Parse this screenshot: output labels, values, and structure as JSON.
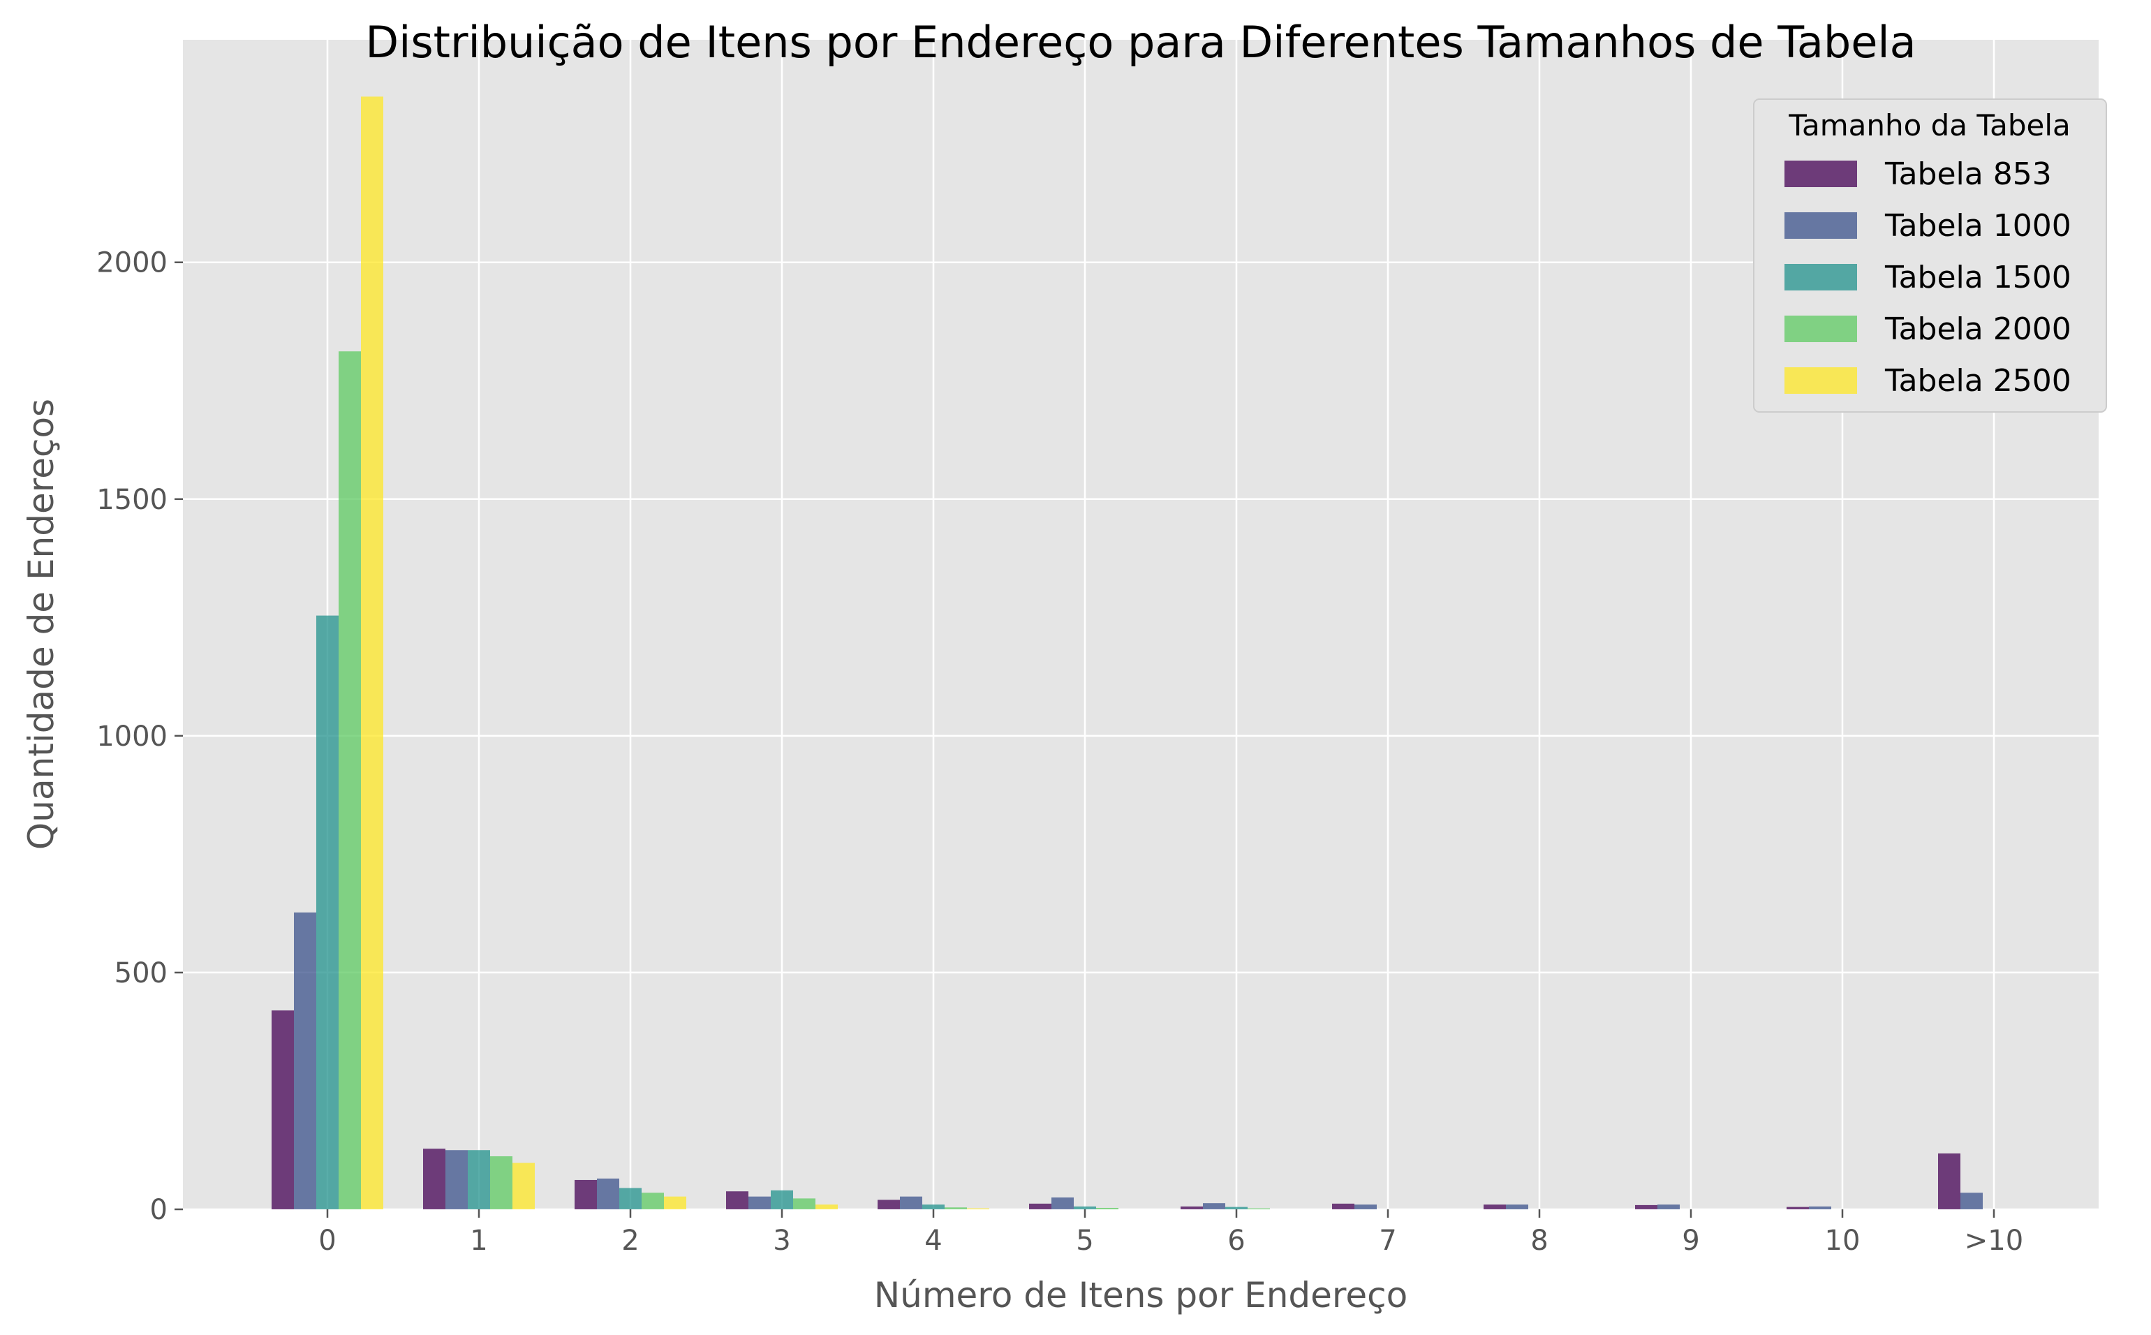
{
  "chart_data": {
    "type": "bar",
    "title": "Distribuição de Itens por Endereço para Diferentes Tamanhos de Tabela",
    "xlabel": "Número de Itens por Endereço",
    "ylabel": "Quantidade de Endereços",
    "categories": [
      "0",
      "1",
      "2",
      "3",
      "4",
      "5",
      "6",
      "7",
      "8",
      "9",
      "10",
      ">10"
    ],
    "ylim": [
      0,
      2470
    ],
    "yticks": [
      0,
      500,
      1000,
      1500,
      2000
    ],
    "grid": true,
    "legend_title": "Tamanho da Tabela",
    "legend_position": "top-right",
    "series": [
      {
        "name": "Tabela 853",
        "color": "#440154",
        "values": [
          420,
          128,
          62,
          38,
          20,
          12,
          6,
          12,
          10,
          9,
          5,
          118
        ]
      },
      {
        "name": "Tabela 1000",
        "color": "#3b528b",
        "values": [
          627,
          125,
          65,
          27,
          27,
          25,
          13,
          10,
          10,
          10,
          6,
          35
        ]
      },
      {
        "name": "Tabela 1500",
        "color": "#21918c",
        "values": [
          1254,
          125,
          45,
          40,
          10,
          6,
          5,
          0,
          0,
          0,
          0,
          0
        ]
      },
      {
        "name": "Tabela 2000",
        "color": "#5ec962",
        "values": [
          1812,
          112,
          35,
          23,
          4,
          3,
          2,
          0,
          0,
          0,
          0,
          0
        ]
      },
      {
        "name": "Tabela 2500",
        "color": "#fde725",
        "values": [
          2350,
          98,
          27,
          10,
          2,
          0,
          0,
          0,
          0,
          0,
          0,
          0
        ]
      }
    ]
  }
}
